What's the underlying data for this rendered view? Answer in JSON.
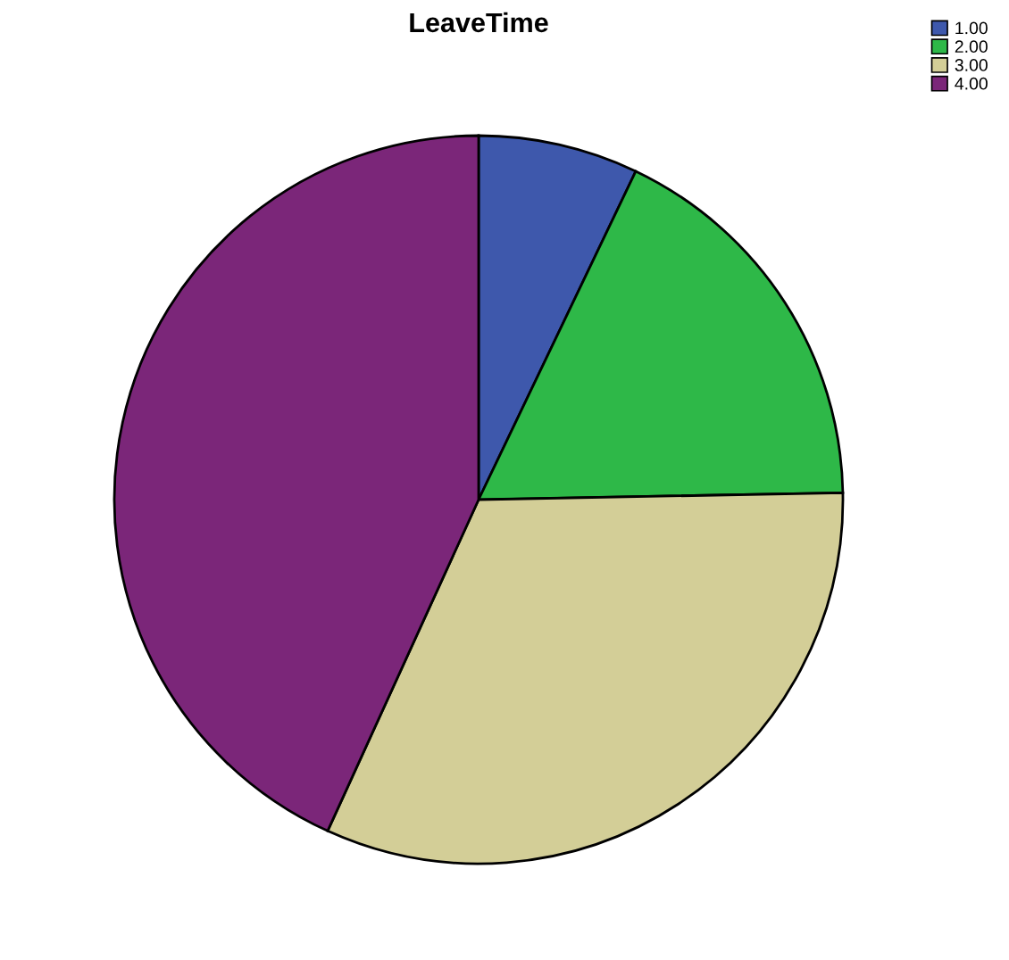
{
  "chart_data": {
    "type": "pie",
    "title": "LeaveTime",
    "categories": [
      "1.00",
      "2.00",
      "3.00",
      "4.00"
    ],
    "values": [
      7.1,
      17.6,
      32.1,
      43.2
    ],
    "colors": [
      "#3e58ac",
      "#2eb848",
      "#d3ce97",
      "#7b2679"
    ],
    "legend": "top right"
  }
}
